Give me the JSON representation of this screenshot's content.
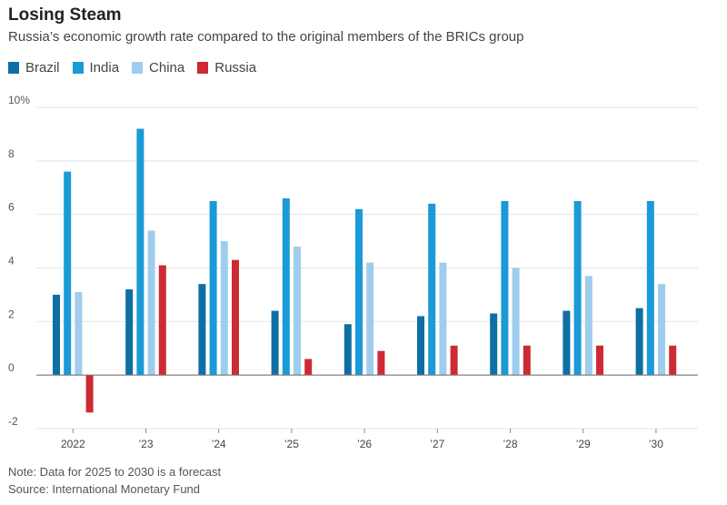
{
  "title": "Losing Steam",
  "subtitle": "Russia’s economic growth rate compared to the original members of the BRICs group",
  "note": "Note: Data for 2025 to 2030 is a forecast",
  "source": "Source: International Monetary Fund",
  "chart_data": {
    "type": "bar",
    "categories": [
      "2022",
      "’23",
      "’24",
      "’25",
      "’26",
      "’27",
      "’28",
      "’29",
      "’30"
    ],
    "series": [
      {
        "name": "Brazil",
        "color": "#0d6fa3",
        "values": [
          3.0,
          3.2,
          3.4,
          2.4,
          1.9,
          2.2,
          2.3,
          2.4,
          2.5
        ]
      },
      {
        "name": "India",
        "color": "#1a9ad6",
        "values": [
          7.6,
          9.2,
          6.5,
          6.6,
          6.2,
          6.4,
          6.5,
          6.5,
          6.5
        ]
      },
      {
        "name": "China",
        "color": "#9fcdee",
        "values": [
          3.1,
          5.4,
          5.0,
          4.8,
          4.2,
          4.2,
          4.0,
          3.7,
          3.4
        ]
      },
      {
        "name": "Russia",
        "color": "#cc2b35",
        "values": [
          -1.4,
          4.1,
          4.3,
          0.6,
          0.9,
          1.1,
          1.1,
          1.1,
          1.1
        ]
      }
    ],
    "ylim": [
      -2,
      10
    ],
    "yticks": [
      -2,
      0,
      2,
      4,
      6,
      8,
      10
    ],
    "ytick_labels": [
      "-2",
      "0",
      "2",
      "4",
      "6",
      "8",
      "10%"
    ],
    "grid": true,
    "legend_position": "top-left"
  }
}
